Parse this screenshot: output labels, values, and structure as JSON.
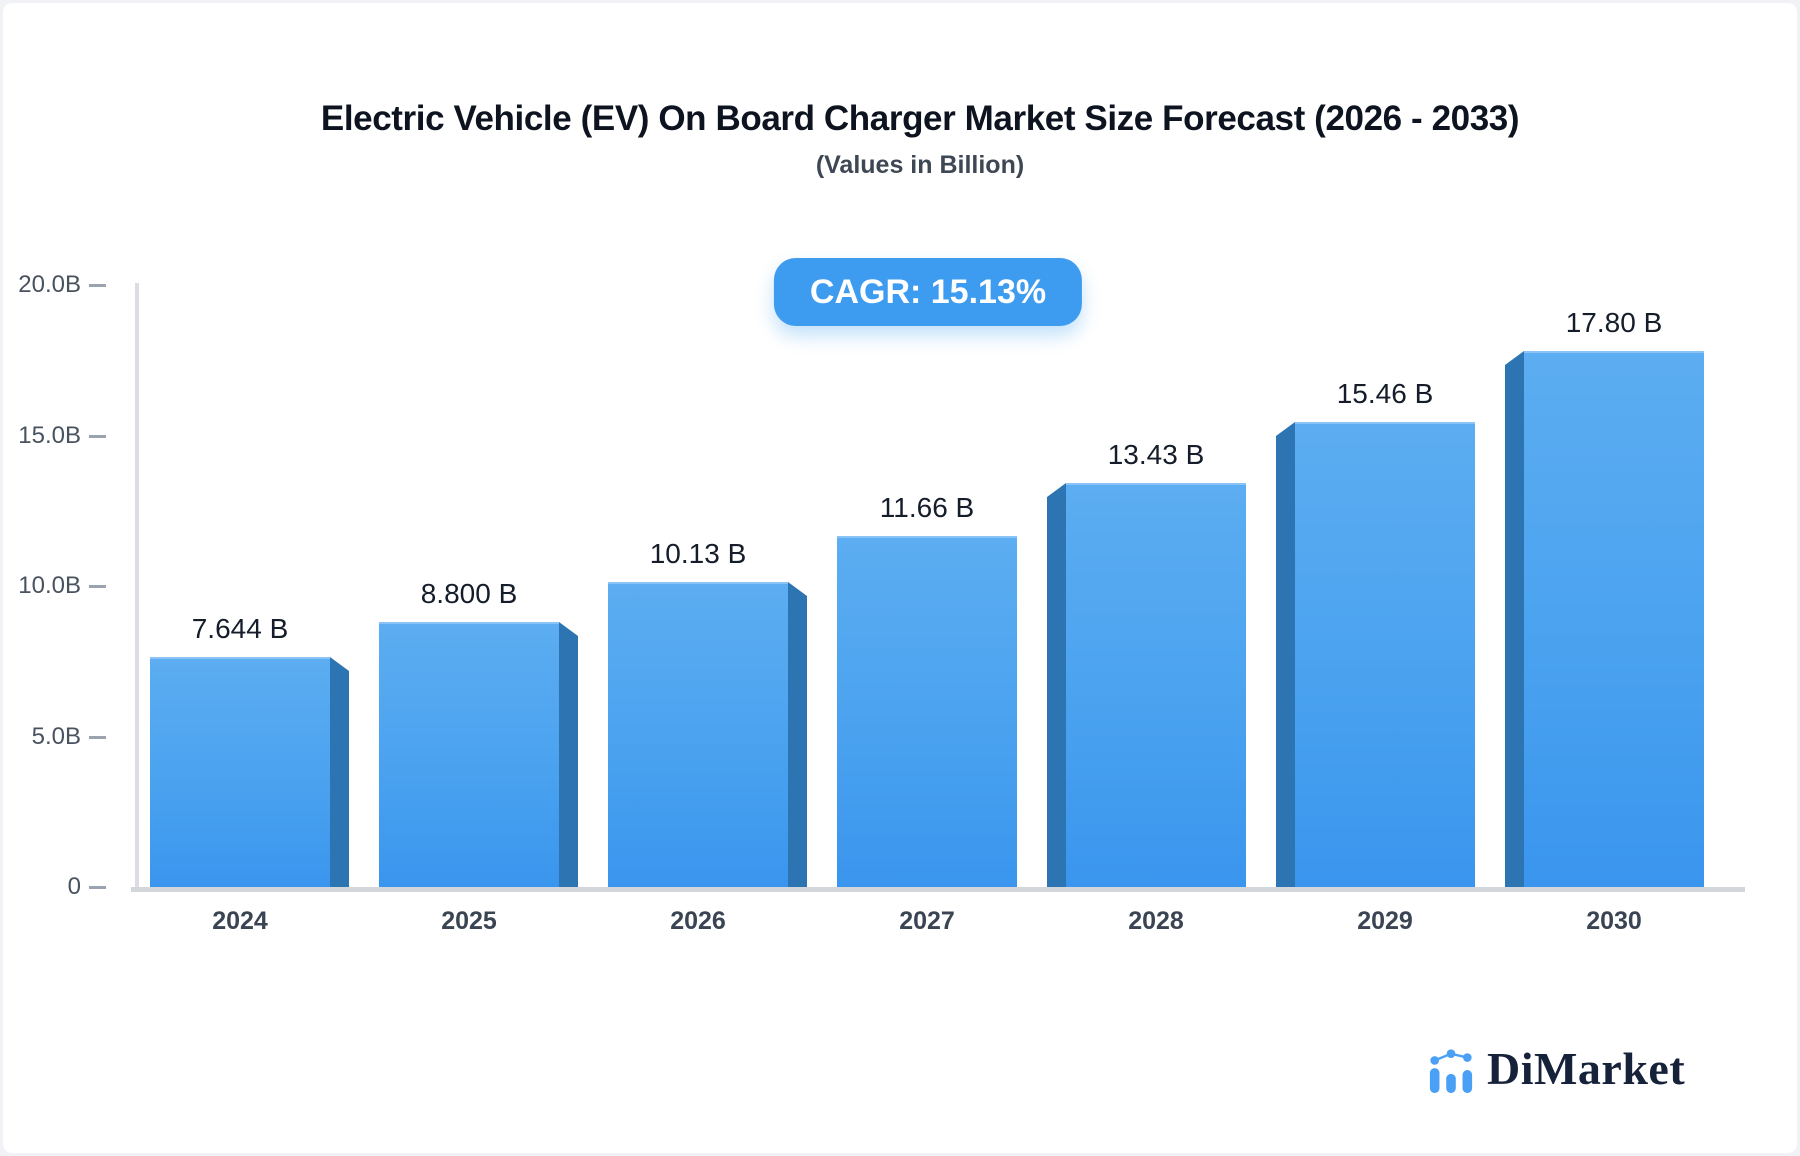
{
  "header": {
    "title": "Electric Vehicle (EV) On Board Charger Market Size Forecast (2026 - 2033)",
    "subtitle": "(Values in Billion)"
  },
  "badge": {
    "label": "CAGR: 15.13%",
    "background": "#3d9bf0",
    "text_color": "#ffffff"
  },
  "chart_data": {
    "type": "bar",
    "title": "Electric Vehicle (EV) On Board Charger Market Size Forecast (2026 - 2033)",
    "subtitle": "(Values in Billion)",
    "cagr_label": "CAGR: 15.13%",
    "categories": [
      "2024",
      "2025",
      "2026",
      "2027",
      "2028",
      "2029",
      "2030"
    ],
    "values": [
      7.644,
      8.8,
      10.13,
      11.66,
      13.43,
      15.46,
      17.8
    ],
    "value_labels": [
      "7.644 B",
      "8.800 B",
      "10.13 B",
      "11.66 B",
      "13.43 B",
      "15.46 B",
      "17.80 B"
    ],
    "y_ticks": [
      20,
      15,
      10,
      5,
      0
    ],
    "y_tick_labels": [
      "20.0B",
      "15.0B",
      "10.0B",
      "5.0B",
      "0"
    ],
    "ylim": [
      0,
      20
    ],
    "xlabel": "",
    "ylabel": "",
    "grid": false,
    "legend": false,
    "bar_color_top": "#5cadf1",
    "bar_color_bottom": "#3a95ee",
    "bar_side_color": "#2d74b2",
    "axis_color": "#d3d6db",
    "tick_color": "#9ba3b0"
  },
  "logo": {
    "text": "DiMarket",
    "icon": "bar-line-chart-icon",
    "icon_color": "#4aa0f4",
    "text_color": "#16213a"
  }
}
